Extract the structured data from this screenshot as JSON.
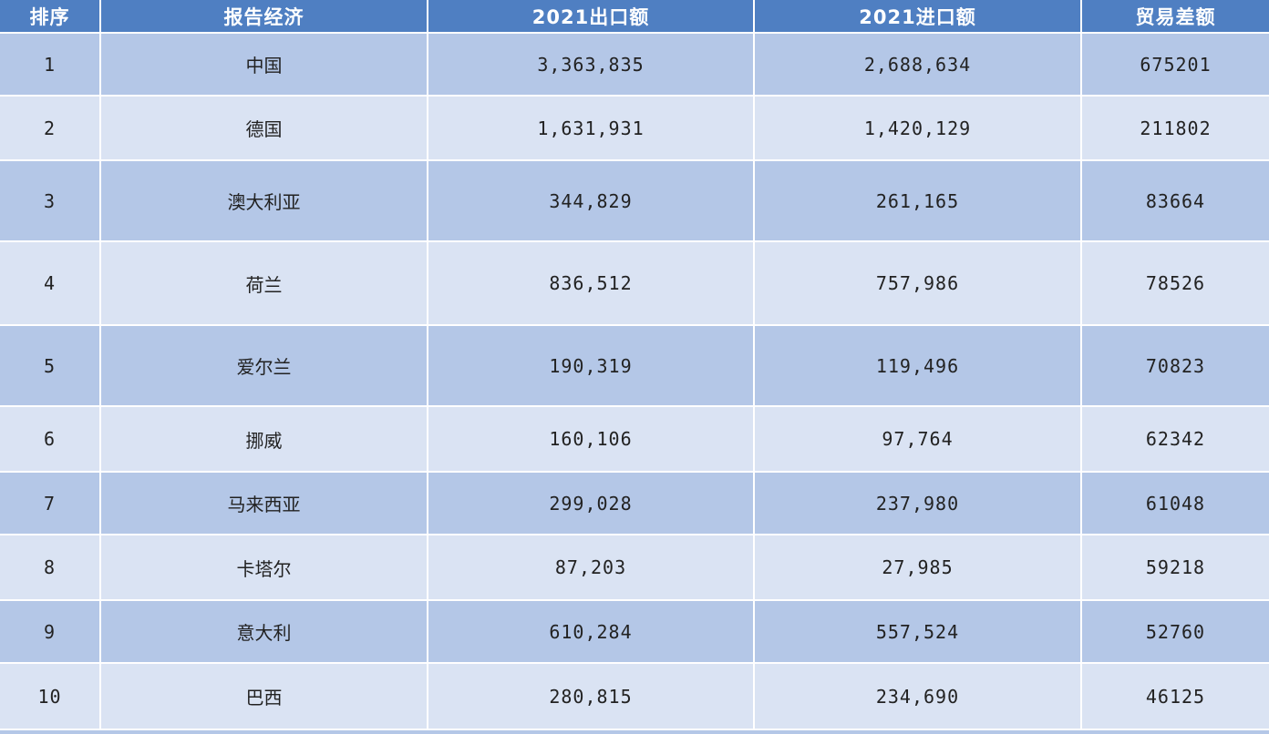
{
  "table": {
    "headers": [
      "排序",
      "报告经济",
      "2021出口额",
      "2021进口额",
      "贸易差额"
    ],
    "rows": [
      {
        "rank": "1",
        "economy": "中国",
        "export": "3,363,835",
        "import": "2,688,634",
        "balance": "675201"
      },
      {
        "rank": "2",
        "economy": "德国",
        "export": "1,631,931",
        "import": "1,420,129",
        "balance": "211802"
      },
      {
        "rank": "3",
        "economy": "澳大利亚",
        "export": "344,829",
        "import": "261,165",
        "balance": "83664"
      },
      {
        "rank": "4",
        "economy": "荷兰",
        "export": "836,512",
        "import": "757,986",
        "balance": "78526"
      },
      {
        "rank": "5",
        "economy": "爱尔兰",
        "export": "190,319",
        "import": "119,496",
        "balance": "70823"
      },
      {
        "rank": "6",
        "economy": "挪威",
        "export": "160,106",
        "import": "97,764",
        "balance": "62342"
      },
      {
        "rank": "7",
        "economy": "马来西亚",
        "export": "299,028",
        "import": "237,980",
        "balance": "61048"
      },
      {
        "rank": "8",
        "economy": "卡塔尔",
        "export": "87,203",
        "import": "27,985",
        "balance": "59218"
      },
      {
        "rank": "9",
        "economy": "意大利",
        "export": "610,284",
        "import": "557,524",
        "balance": "52760"
      },
      {
        "rank": "10",
        "economy": "巴西",
        "export": "280,815",
        "import": "234,690",
        "balance": "46125"
      }
    ]
  },
  "colors": {
    "header_bg": "#4f7fc2",
    "row_dark": "#b4c7e7",
    "row_light": "#dae3f3"
  }
}
